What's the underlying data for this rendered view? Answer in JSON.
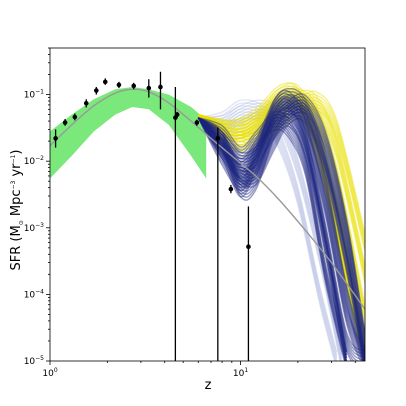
{
  "chart_data": {
    "type": "scatter",
    "title": "",
    "xlabel": "z",
    "ylabel_main": "SFR (M",
    "ylabel_sub": "⊙",
    "ylabel_rest": " Mpc",
    "ylabel_exp1": "−3",
    "ylabel_mid": " yr",
    "ylabel_exp2": "−1",
    "ylabel_end": ")",
    "xscale": "log",
    "yscale": "log",
    "xlim": [
      1,
      45
    ],
    "ylim": [
      1e-05,
      0.5
    ],
    "grid": false,
    "legend": "none",
    "x_ticks": [
      {
        "value": 1,
        "base": "10",
        "exp": "0"
      },
      {
        "value": 10,
        "base": "10",
        "exp": "1"
      }
    ],
    "y_ticks": [
      {
        "value": 0.1,
        "base": "10",
        "exp": "−1"
      },
      {
        "value": 0.01,
        "base": "10",
        "exp": "−2"
      },
      {
        "value": 0.001,
        "base": "10",
        "exp": "−3"
      },
      {
        "value": 0.0001,
        "base": "10",
        "exp": "−4"
      },
      {
        "value": 1e-05,
        "base": "10",
        "exp": "−5"
      }
    ],
    "colors": {
      "band": "#7be87b",
      "model_line": "#999999",
      "yellow_models": "#e8e000",
      "blue_models": "#1a237e",
      "light_models": "#9fa8da",
      "points": "#000000"
    },
    "model_curve": [
      [
        1.0,
        0.017
      ],
      [
        1.3,
        0.035
      ],
      [
        1.7,
        0.068
      ],
      [
        2.2,
        0.105
      ],
      [
        2.7,
        0.12
      ],
      [
        3.3,
        0.11
      ],
      [
        4.2,
        0.075
      ],
      [
        5.5,
        0.04
      ],
      [
        7.0,
        0.022
      ],
      [
        9.0,
        0.012
      ],
      [
        12.0,
        0.006
      ],
      [
        16.0,
        0.0026
      ],
      [
        22.0,
        0.0009
      ],
      [
        30.0,
        0.0003
      ],
      [
        45.0,
        6e-05
      ]
    ],
    "band_upper": [
      [
        1.0,
        0.028
      ],
      [
        1.3,
        0.05
      ],
      [
        1.7,
        0.085
      ],
      [
        2.2,
        0.12
      ],
      [
        2.7,
        0.13
      ],
      [
        3.3,
        0.12
      ],
      [
        4.2,
        0.1
      ],
      [
        5.5,
        0.065
      ],
      [
        6.6,
        0.042
      ]
    ],
    "band_lower": [
      [
        1.0,
        0.0055
      ],
      [
        1.3,
        0.012
      ],
      [
        1.7,
        0.028
      ],
      [
        2.2,
        0.05
      ],
      [
        2.7,
        0.065
      ],
      [
        3.3,
        0.06
      ],
      [
        4.2,
        0.035
      ],
      [
        5.5,
        0.012
      ],
      [
        6.6,
        0.0055
      ]
    ],
    "data_points": [
      {
        "z": 1.07,
        "sfr": 0.022,
        "lo": 0.016,
        "hi": 0.03
      },
      {
        "z": 1.2,
        "sfr": 0.038,
        "lo": 0.034,
        "hi": 0.043
      },
      {
        "z": 1.35,
        "sfr": 0.046,
        "lo": 0.041,
        "hi": 0.052
      },
      {
        "z": 1.55,
        "sfr": 0.074,
        "lo": 0.064,
        "hi": 0.085
      },
      {
        "z": 1.75,
        "sfr": 0.115,
        "lo": 0.1,
        "hi": 0.13
      },
      {
        "z": 1.95,
        "sfr": 0.155,
        "lo": 0.14,
        "hi": 0.175
      },
      {
        "z": 2.3,
        "sfr": 0.14,
        "lo": 0.125,
        "hi": 0.155
      },
      {
        "z": 2.75,
        "sfr": 0.135,
        "lo": 0.12,
        "hi": 0.15
      },
      {
        "z": 3.3,
        "sfr": 0.125,
        "lo": 0.09,
        "hi": 0.17
      },
      {
        "z": 3.8,
        "sfr": 0.13,
        "lo": 0.06,
        "hi": 0.22
      },
      {
        "z": 4.55,
        "sfr": 0.045,
        "lo": 1e-05,
        "hi": 0.13
      },
      {
        "z": 4.65,
        "sfr": 0.05,
        "lo": 0.045,
        "hi": 0.055
      },
      {
        "z": 5.9,
        "sfr": 0.038,
        "lo": 0.034,
        "hi": 0.042
      },
      {
        "z": 7.6,
        "sfr": 0.022,
        "lo": 1e-05,
        "hi": 0.032
      },
      {
        "z": 8.9,
        "sfr": 0.0038,
        "lo": 0.0033,
        "hi": 0.0044
      },
      {
        "z": 11.0,
        "sfr": 0.00052,
        "lo": 1e-05,
        "hi": 0.0021
      }
    ],
    "yellow_models": [
      [
        [
          6.0,
          0.05
        ],
        [
          9.0,
          0.03
        ],
        [
          12.0,
          0.04
        ],
        [
          16.0,
          0.09
        ],
        [
          20.0,
          0.1
        ],
        [
          25.0,
          0.03
        ],
        [
          32.0,
          0.002
        ],
        [
          45.0,
          2e-05
        ]
      ],
      [
        [
          6.0,
          0.05
        ],
        [
          9.0,
          0.025
        ],
        [
          12.0,
          0.03
        ],
        [
          16.0,
          0.07
        ],
        [
          20.0,
          0.09
        ],
        [
          25.0,
          0.05
        ],
        [
          32.0,
          0.006
        ],
        [
          45.0,
          5e-05
        ]
      ],
      [
        [
          6.0,
          0.045
        ],
        [
          9.0,
          0.02
        ],
        [
          12.0,
          0.025
        ],
        [
          16.0,
          0.05
        ],
        [
          20.0,
          0.08
        ],
        [
          25.0,
          0.07
        ],
        [
          32.0,
          0.015
        ],
        [
          45.0,
          0.0002
        ]
      ],
      [
        [
          6.0,
          0.05
        ],
        [
          9.0,
          0.028
        ],
        [
          12.0,
          0.035
        ],
        [
          16.0,
          0.075
        ],
        [
          20.0,
          0.07
        ],
        [
          25.0,
          0.015
        ],
        [
          32.0,
          0.0008
        ],
        [
          45.0,
          1e-05
        ]
      ],
      [
        [
          6.0,
          0.048
        ],
        [
          9.0,
          0.022
        ],
        [
          12.0,
          0.02
        ],
        [
          16.0,
          0.04
        ],
        [
          20.0,
          0.06
        ],
        [
          25.0,
          0.08
        ],
        [
          32.0,
          0.03
        ],
        [
          45.0,
          0.0006
        ]
      ],
      [
        [
          6.0,
          0.05
        ],
        [
          9.0,
          0.03
        ],
        [
          12.0,
          0.045
        ],
        [
          16.0,
          0.1
        ],
        [
          20.0,
          0.09
        ],
        [
          25.0,
          0.02
        ],
        [
          32.0,
          0.001
        ],
        [
          45.0,
          1e-05
        ]
      ]
    ],
    "blue_models": [
      [
        [
          6.0,
          0.045
        ],
        [
          8.0,
          0.015
        ],
        [
          10.0,
          0.004
        ],
        [
          12.0,
          0.01
        ],
        [
          15.0,
          0.06
        ],
        [
          18.0,
          0.08
        ],
        [
          22.0,
          0.03
        ],
        [
          28.0,
          0.002
        ],
        [
          36.0,
          5e-05
        ],
        [
          45.0,
          1e-05
        ]
      ],
      [
        [
          6.0,
          0.045
        ],
        [
          8.0,
          0.02
        ],
        [
          10.0,
          0.006
        ],
        [
          12.0,
          0.008
        ],
        [
          15.0,
          0.04
        ],
        [
          18.0,
          0.07
        ],
        [
          22.0,
          0.04
        ],
        [
          28.0,
          0.004
        ],
        [
          36.0,
          0.0001
        ],
        [
          45.0,
          1e-05
        ]
      ],
      [
        [
          6.0,
          0.045
        ],
        [
          8.0,
          0.012
        ],
        [
          10.0,
          0.005
        ],
        [
          12.0,
          0.012
        ],
        [
          15.0,
          0.05
        ],
        [
          18.0,
          0.06
        ],
        [
          22.0,
          0.02
        ],
        [
          28.0,
          0.0008
        ],
        [
          36.0,
          2e-05
        ],
        [
          45.0,
          1e-05
        ]
      ],
      [
        [
          6.0,
          0.045
        ],
        [
          8.0,
          0.018
        ],
        [
          10.0,
          0.007
        ],
        [
          12.0,
          0.006
        ],
        [
          15.0,
          0.02
        ],
        [
          18.0,
          0.05
        ],
        [
          22.0,
          0.05
        ],
        [
          28.0,
          0.008
        ],
        [
          36.0,
          0.0003
        ],
        [
          45.0,
          1e-05
        ]
      ],
      [
        [
          6.0,
          0.045
        ],
        [
          8.0,
          0.02
        ],
        [
          10.0,
          0.01
        ],
        [
          12.0,
          0.012
        ],
        [
          15.0,
          0.03
        ],
        [
          18.0,
          0.045
        ],
        [
          22.0,
          0.015
        ],
        [
          28.0,
          0.0005
        ],
        [
          36.0,
          1e-05
        ]
      ],
      [
        [
          6.0,
          0.045
        ],
        [
          8.0,
          0.015
        ],
        [
          10.0,
          0.008
        ],
        [
          12.0,
          0.015
        ],
        [
          15.0,
          0.06
        ],
        [
          18.0,
          0.09
        ],
        [
          22.0,
          0.06
        ],
        [
          28.0,
          0.01
        ],
        [
          36.0,
          0.0005
        ],
        [
          45.0,
          1e-05
        ]
      ],
      [
        [
          6.0,
          0.045
        ],
        [
          8.0,
          0.025
        ],
        [
          10.0,
          0.012
        ],
        [
          12.0,
          0.02
        ],
        [
          15.0,
          0.04
        ],
        [
          18.0,
          0.03
        ],
        [
          22.0,
          0.008
        ],
        [
          28.0,
          0.0002
        ],
        [
          36.0,
          1e-05
        ]
      ],
      [
        [
          6.0,
          0.045
        ],
        [
          8.0,
          0.02
        ],
        [
          10.0,
          0.004
        ],
        [
          12.0,
          0.005
        ],
        [
          15.0,
          0.03
        ],
        [
          18.0,
          0.06
        ],
        [
          22.0,
          0.07
        ],
        [
          28.0,
          0.02
        ],
        [
          36.0,
          0.001
        ],
        [
          45.0,
          2e-05
        ]
      ]
    ],
    "light_models": [
      [
        [
          6.0,
          0.045
        ],
        [
          8.0,
          0.04
        ],
        [
          10.0,
          0.06
        ],
        [
          13.0,
          0.05
        ],
        [
          16.0,
          0.02
        ],
        [
          20.0,
          0.003
        ],
        [
          26.0,
          0.0001
        ],
        [
          32.0,
          1e-05
        ]
      ],
      [
        [
          6.0,
          0.045
        ],
        [
          8.0,
          0.035
        ],
        [
          10.0,
          0.05
        ],
        [
          13.0,
          0.06
        ],
        [
          16.0,
          0.04
        ],
        [
          20.0,
          0.008
        ],
        [
          26.0,
          0.0004
        ],
        [
          34.0,
          1e-05
        ]
      ],
      [
        [
          6.0,
          0.045
        ],
        [
          8.0,
          0.03
        ],
        [
          10.0,
          0.03
        ],
        [
          13.0,
          0.045
        ],
        [
          16.0,
          0.06
        ],
        [
          20.0,
          0.03
        ],
        [
          26.0,
          0.002
        ],
        [
          36.0,
          1e-05
        ]
      ]
    ]
  }
}
